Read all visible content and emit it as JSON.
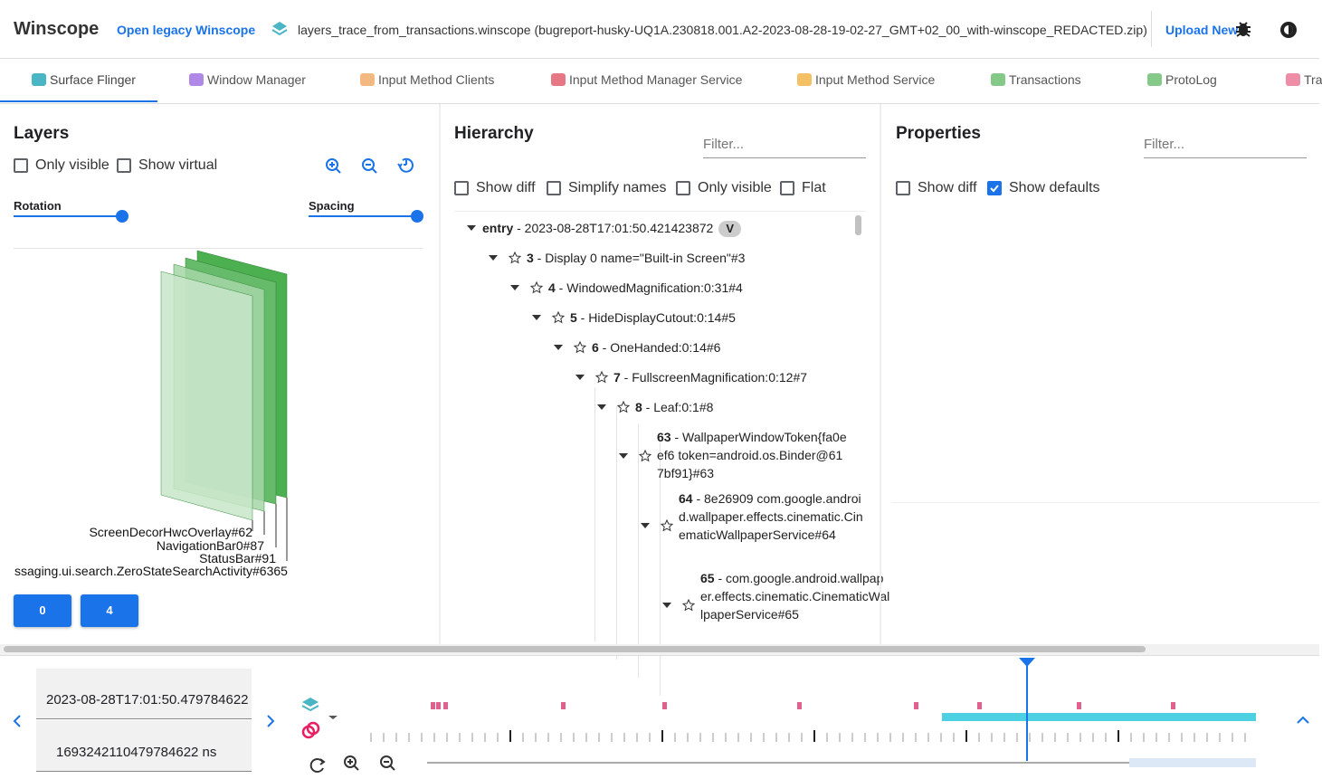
{
  "header": {
    "title": "Winscope",
    "legacy_link": "Open legacy Winscope",
    "file_name": "layers_trace_from_transactions.winscope (bugreport-husky-UQ1A.230818.001.A2-2023-08-28-19-02-27_GMT+02_00_with-winscope_REDACTED.zip)",
    "upload": "Upload New"
  },
  "tabs": [
    "Surface Flinger",
    "Window Manager",
    "Input Method Clients",
    "Input Method Manager Service",
    "Input Method Service",
    "Transactions",
    "ProtoLog",
    "Tra"
  ],
  "layers": {
    "title": "Layers",
    "options": [
      {
        "label": "Only visible",
        "checked": false
      },
      {
        "label": "Show virtual",
        "checked": false
      }
    ],
    "rotation": "Rotation",
    "spacing": "Spacing",
    "labels": [
      "ScreenDecorHwcOverlay#62",
      "NavigationBar0#87",
      "StatusBar#91",
      "ssaging.ui.search.ZeroStateSearchActivity#6365"
    ],
    "buttons": [
      "0",
      "4"
    ]
  },
  "hierarchy": {
    "title": "Hierarchy",
    "filter": "Filter...",
    "options": [
      {
        "label": "Show diff",
        "checked": false
      },
      {
        "label": "Simplify names",
        "checked": false
      },
      {
        "label": "Only visible",
        "checked": false
      },
      {
        "label": "Flat",
        "checked": false
      }
    ],
    "nodes": [
      {
        "id": "entry",
        "text": " - 2023-08-28T17:01:50.421423872",
        "badge": "V"
      },
      {
        "id": "3",
        "text": " - Display 0 name=\"Built-in Screen\"#3"
      },
      {
        "id": "4",
        "text": " - WindowedMagnification:0:31#4"
      },
      {
        "id": "5",
        "text": " - HideDisplayCutout:0:14#5"
      },
      {
        "id": "6",
        "text": " - OneHanded:0:14#6"
      },
      {
        "id": "7",
        "text": " - FullscreenMagnification:0:12#7"
      },
      {
        "id": "8",
        "text": " - Leaf:0:1#8"
      },
      {
        "id": "63",
        "text": " - WallpaperWindowToken{fa0eef6 token=android.os.Binder@617bf91}#63"
      },
      {
        "id": "64",
        "text": " - 8e26909 com.google.android.wallpaper.effects.cinematic.CinematicWallpaperService#64"
      },
      {
        "id": "65",
        "text": " - com.google.android.wallpaper.effects.cinematic.CinematicWallpaperService#65"
      }
    ]
  },
  "properties": {
    "title": "Properties",
    "filter": "Filter...",
    "options": [
      {
        "label": "Show diff",
        "checked": false
      },
      {
        "label": "Show defaults",
        "checked": true
      }
    ]
  },
  "timeline": {
    "timestamp": "2023-08-28T17:01:50.479784622",
    "timestamp_ns": "1693242110479784622 ns"
  }
}
